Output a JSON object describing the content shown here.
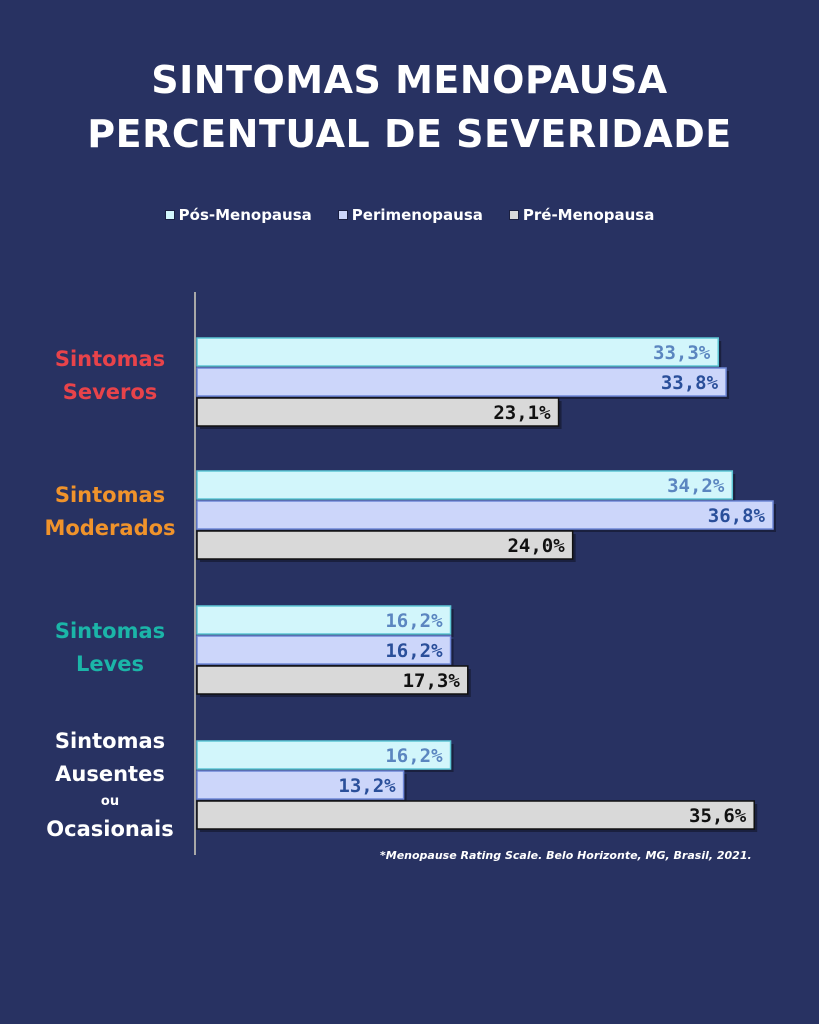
{
  "title_line1": "SINTOMAS MENOPAUSA",
  "title_line2": "PERCENTUAL DE SEVERIDADE",
  "footnote": "*Menopause Rating Scale. Belo Horizonte, MG, Brasil, 2021.",
  "colors": {
    "background": "#283262",
    "severos": "#e8434a",
    "moderados": "#f0932b",
    "leves": "#1bb5a8",
    "ausentes": "#ffffff",
    "pos_fill": "#d2f6fb",
    "peri_fill": "#ccd6fa",
    "pre_fill": "#d9d9d9"
  },
  "categories": [
    {
      "line1": "Sintomas",
      "line2": "Severos",
      "line3": "",
      "line4": "",
      "color": "#e8434a"
    },
    {
      "line1": "Sintomas",
      "line2": "Moderados",
      "line3": "",
      "line4": "",
      "color": "#f0932b"
    },
    {
      "line1": "Sintomas",
      "line2": "Leves",
      "line3": "",
      "line4": "",
      "color": "#1bb5a8"
    },
    {
      "line1": "Sintomas",
      "line2": "Ausentes",
      "line3": "ou",
      "line4": "Ocasionais",
      "color": "#ffffff"
    }
  ],
  "chart_data": {
    "type": "bar",
    "orientation": "horizontal",
    "title": "SINTOMAS MENOPAUSA PERCENTUAL DE SEVERIDADE",
    "categories": [
      "Sintomas Severos",
      "Sintomas Moderados",
      "Sintomas Leves",
      "Sintomas Ausentes ou Ocasionais"
    ],
    "series": [
      {
        "name": "Pós-Menopausa",
        "values": [
          33.3,
          34.2,
          16.2,
          16.2
        ],
        "labels": [
          "33,3%",
          "34,2%",
          "16,2%",
          "16,2%"
        ],
        "fill": "#d2f6fb",
        "stroke": "#5ec7d6",
        "text": "#5b86c0"
      },
      {
        "name": "Perimenopausa",
        "values": [
          33.8,
          36.8,
          16.2,
          13.2
        ],
        "labels": [
          "33,8%",
          "36,8%",
          "16,2%",
          "13,2%"
        ],
        "fill": "#ccd6fa",
        "stroke": "#6f88d8",
        "text": "#2a4f9a"
      },
      {
        "name": "Pré-Menopausa",
        "values": [
          23.1,
          24.0,
          17.3,
          35.6
        ],
        "labels": [
          "23,1%",
          "24,0%",
          "17,3%",
          "35,6%"
        ],
        "fill": "#d9d9d9",
        "stroke": "#111111",
        "text": "#111111"
      }
    ],
    "xlim": [
      0,
      37
    ],
    "legend": "top-center",
    "grid": false
  }
}
